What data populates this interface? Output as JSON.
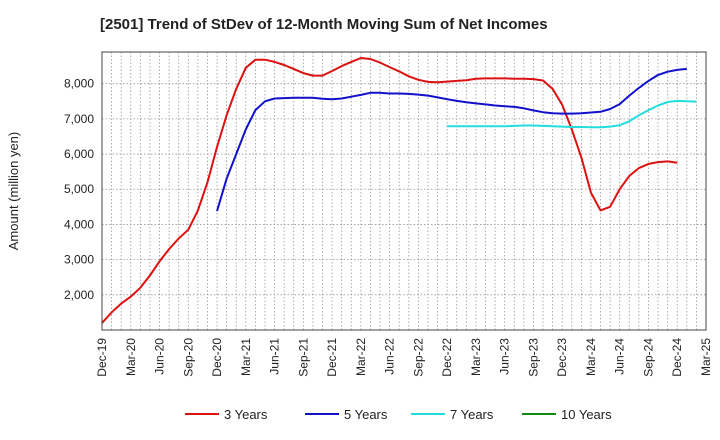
{
  "chart_data": {
    "type": "line",
    "title": "[2501]  Trend of StDev of 12-Month Moving Sum of Net Incomes",
    "xlabel": "",
    "ylabel": "Amount (million yen)",
    "ylim": [
      1000,
      8900
    ],
    "yticks": [
      2000,
      3000,
      4000,
      5000,
      6000,
      7000,
      8000
    ],
    "ytick_labels": [
      "2,000",
      "3,000",
      "4,000",
      "5,000",
      "6,000",
      "7,000",
      "8,000"
    ],
    "xticks": [
      "Dec-19",
      "Mar-20",
      "Jun-20",
      "Sep-20",
      "Dec-20",
      "Mar-21",
      "Jun-21",
      "Sep-21",
      "Dec-21",
      "Mar-22",
      "Jun-22",
      "Sep-22",
      "Dec-22",
      "Mar-23",
      "Jun-23",
      "Sep-23",
      "Dec-23",
      "Mar-24",
      "Jun-24",
      "Sep-24",
      "Dec-24",
      "Mar-25"
    ],
    "grid": true,
    "legend_position": "bottom",
    "series": [
      {
        "name": "3 Years",
        "color": "#dd1111",
        "start_index": 0,
        "values": [
          1200,
          1500,
          1750,
          1950,
          2200,
          2550,
          2950,
          3300,
          3600,
          3850,
          4400,
          5200,
          6200,
          7100,
          7850,
          8450,
          8680,
          8680,
          8620,
          8530,
          8420,
          8300,
          8230,
          8230,
          8360,
          8500,
          8620,
          8730,
          8700,
          8600,
          8470,
          8350,
          8210,
          8110,
          8050,
          8040,
          8060,
          8080,
          8100,
          8140,
          8150,
          8150,
          8150,
          8140,
          8140,
          8130,
          8090,
          7850,
          7400,
          6700,
          5900,
          4900,
          4400,
          4500,
          5000,
          5380,
          5600,
          5720,
          5770,
          5790,
          5750
        ]
      },
      {
        "name": "5 Years",
        "color": "#1111cc",
        "start_index": 12,
        "values": [
          4380,
          5300,
          6000,
          6700,
          7250,
          7500,
          7580,
          7590,
          7600,
          7600,
          7600,
          7570,
          7560,
          7580,
          7630,
          7680,
          7740,
          7740,
          7720,
          7720,
          7710,
          7690,
          7660,
          7610,
          7560,
          7510,
          7470,
          7440,
          7410,
          7380,
          7360,
          7340,
          7300,
          7240,
          7190,
          7160,
          7150,
          7150,
          7160,
          7180,
          7200,
          7280,
          7420,
          7660,
          7880,
          8080,
          8250,
          8340,
          8390,
          8420
        ]
      },
      {
        "name": "7 Years",
        "color": "#22dddd",
        "start_index": 36,
        "values": [
          6790,
          6790,
          6790,
          6790,
          6790,
          6790,
          6790,
          6800,
          6810,
          6810,
          6800,
          6790,
          6780,
          6770,
          6770,
          6760,
          6760,
          6780,
          6820,
          6930,
          7100,
          7250,
          7380,
          7480,
          7510,
          7500,
          7490
        ]
      },
      {
        "name": "10 Years",
        "color": "#118811",
        "start_index": 0,
        "values": []
      }
    ]
  }
}
